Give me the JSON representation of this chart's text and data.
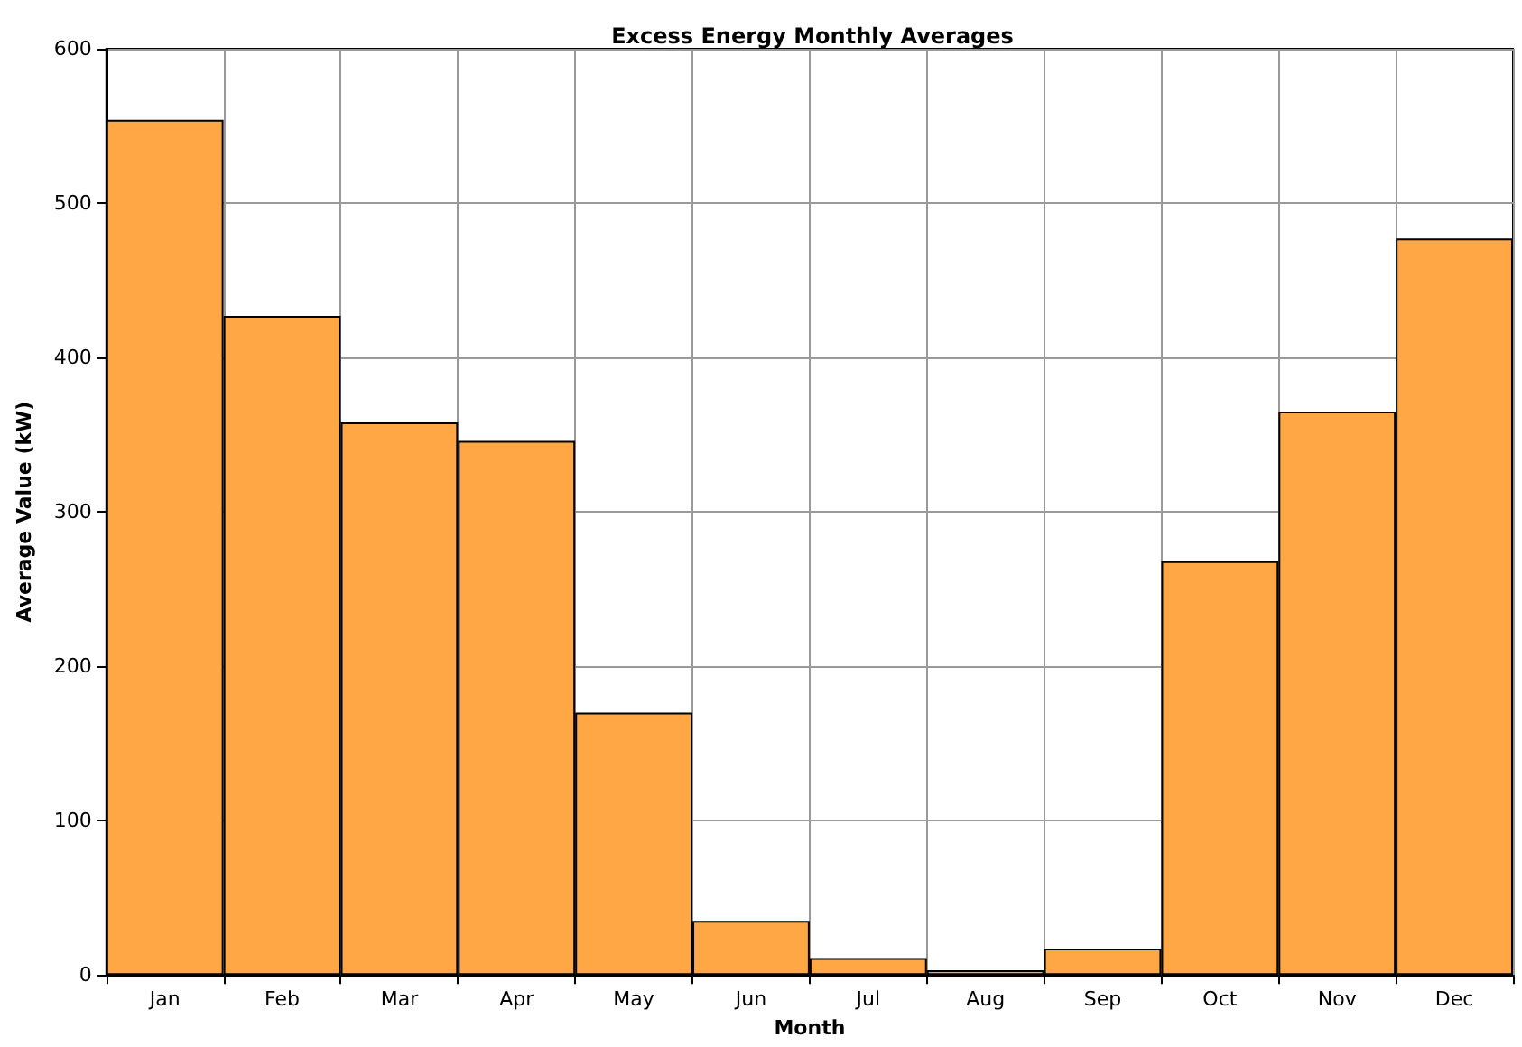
{
  "chart_data": {
    "type": "bar",
    "title": "Excess Energy Monthly Averages",
    "xlabel": "Month",
    "ylabel": "Average Value (kW)",
    "categories": [
      "Jan",
      "Feb",
      "Mar",
      "Apr",
      "May",
      "Jun",
      "Jul",
      "Aug",
      "Sep",
      "Oct",
      "Nov",
      "Dec"
    ],
    "values": [
      554,
      427,
      358,
      346,
      170,
      35,
      11,
      3,
      17,
      268,
      365,
      477
    ],
    "color": "#ffa745",
    "ylim": [
      0,
      600
    ],
    "yticks": [
      0,
      100,
      200,
      300,
      400,
      500,
      600
    ],
    "grid": true
  }
}
